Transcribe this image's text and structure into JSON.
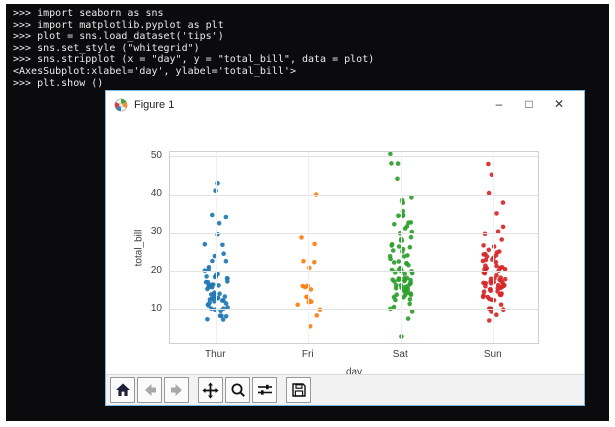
{
  "terminal": {
    "lines": [
      ">>> import seaborn as sns",
      ">>> import matplotlib.pyplot as plt",
      ">>> plot = sns.load_dataset('tips')",
      ">>> sns.set_style (\"whitegrid\")",
      ">>> sns.stripplot (x = \"day\", y = \"total_bill\", data = plot)",
      "<AxesSubplot:xlabel='day', ylabel='total_bill'>",
      ">>> plt.show ()"
    ],
    "background_color": "#0b0b0d",
    "text_color": "#ececec"
  },
  "window": {
    "title": "Figure 1",
    "icon": "matplotlib-logo-icon",
    "controls": {
      "minimize": "–",
      "maximize": "□",
      "close": "✕"
    },
    "border_color": "#7cb9e8"
  },
  "toolbar": {
    "buttons": [
      {
        "name": "home",
        "icon": "home-icon",
        "enabled": true
      },
      {
        "name": "back",
        "icon": "arrow-left-icon",
        "enabled": false
      },
      {
        "name": "forward",
        "icon": "arrow-right-icon",
        "enabled": false
      },
      {
        "name": "pan",
        "icon": "pan-arrows-icon",
        "enabled": true
      },
      {
        "name": "zoom",
        "icon": "magnifier-icon",
        "enabled": true
      },
      {
        "name": "configure-subplots",
        "icon": "sliders-icon",
        "enabled": true
      },
      {
        "name": "save",
        "icon": "floppy-disk-icon",
        "enabled": true
      }
    ]
  },
  "chart_data": {
    "type": "scatter",
    "variant": "stripplot",
    "title": "",
    "xlabel": "day",
    "ylabel": "total_bill",
    "categories": [
      "Thur",
      "Fri",
      "Sat",
      "Sun"
    ],
    "yticks": [
      10,
      20,
      30,
      40,
      50
    ],
    "ylim": [
      0.85,
      51.3
    ],
    "grid": "horizontal-major",
    "legend": "none",
    "series": [
      {
        "name": "Thur",
        "color": "#1f77b4",
        "values": [
          27.2,
          22.76,
          17.29,
          19.44,
          16.66,
          10.07,
          32.68,
          15.98,
          34.83,
          13.03,
          18.28,
          24.71,
          21.16,
          10.65,
          12.43,
          24.08,
          11.69,
          13.42,
          14.26,
          15.95,
          12.48,
          29.8,
          8.52,
          14.52,
          11.38,
          22.82,
          19.08,
          20.27,
          11.17,
          12.26,
          18.26,
          8.51,
          10.33,
          14.15,
          16.0,
          13.16,
          17.47,
          34.3,
          41.19,
          27.05,
          16.43,
          8.35,
          18.64,
          11.87,
          9.78,
          7.51,
          14.07,
          13.13,
          17.26,
          15.48,
          16.58,
          7.56,
          10.34,
          43.11,
          13.0,
          13.51,
          18.71,
          12.74,
          13.0,
          16.4,
          20.53,
          18.78
        ]
      },
      {
        "name": "Fri",
        "color": "#ff7f0e",
        "values": [
          28.97,
          22.49,
          5.75,
          16.32,
          22.75,
          40.17,
          27.28,
          12.03,
          21.01,
          12.46,
          11.35,
          15.38,
          12.16,
          13.42,
          8.58,
          15.98,
          13.42,
          16.27,
          10.09
        ]
      },
      {
        "name": "Sat",
        "color": "#2ca02c",
        "values": [
          50.81,
          48.33,
          48.27,
          44.3,
          39.42,
          38.73,
          38.01,
          35.83,
          34.81,
          34.65,
          34.63,
          32.9,
          32.83,
          32.4,
          31.85,
          31.27,
          30.4,
          30.06,
          29.03,
          28.55,
          28.17,
          28.15,
          27.18,
          26.86,
          26.59,
          26.41,
          25.89,
          25.56,
          25.28,
          24.27,
          24.06,
          24.01,
          23.33,
          22.67,
          22.42,
          22.23,
          22.12,
          21.7,
          20.92,
          20.69,
          20.65,
          20.49,
          20.45,
          20.29,
          20.23,
          20.08,
          19.82,
          19.65,
          19.49,
          18.35,
          18.29,
          18.24,
          18.04,
          17.92,
          17.89,
          17.82,
          17.78,
          17.59,
          17.46,
          17.07,
          16.93,
          16.82,
          16.47,
          16.45,
          16.31,
          16.04,
          15.81,
          15.69,
          15.53,
          15.36,
          15.06,
          14.73,
          14.48,
          14.31,
          14.0,
          13.94,
          13.81,
          13.37,
          13.28,
          12.76,
          12.6,
          11.59,
          10.77,
          10.29,
          9.6,
          7.74,
          3.07
        ]
      },
      {
        "name": "Sun",
        "color": "#d62728",
        "values": [
          48.17,
          45.35,
          40.55,
          38.07,
          35.26,
          31.71,
          30.46,
          29.93,
          28.44,
          26.88,
          25.71,
          25.29,
          25.0,
          24.59,
          24.52,
          23.95,
          23.68,
          23.17,
          23.1,
          22.82,
          21.58,
          21.5,
          21.01,
          20.9,
          20.76,
          20.69,
          20.65,
          19.81,
          18.43,
          18.15,
          17.92,
          17.51,
          17.31,
          16.99,
          16.97,
          16.49,
          16.29,
          16.21,
          15.69,
          15.42,
          15.04,
          14.83,
          14.78,
          13.81,
          13.39,
          12.66,
          10.34,
          10.33,
          10.27,
          8.77,
          7.25,
          26.59,
          24.27,
          22.49,
          21.16,
          20.29,
          19.65,
          19.08,
          18.26,
          18.04,
          17.46,
          17.07,
          16.93,
          16.45,
          15.98,
          15.77,
          15.36,
          14.31,
          14.0,
          13.94,
          13.42,
          12.9,
          12.54,
          11.38,
          10.07,
          9.6
        ]
      }
    ]
  }
}
